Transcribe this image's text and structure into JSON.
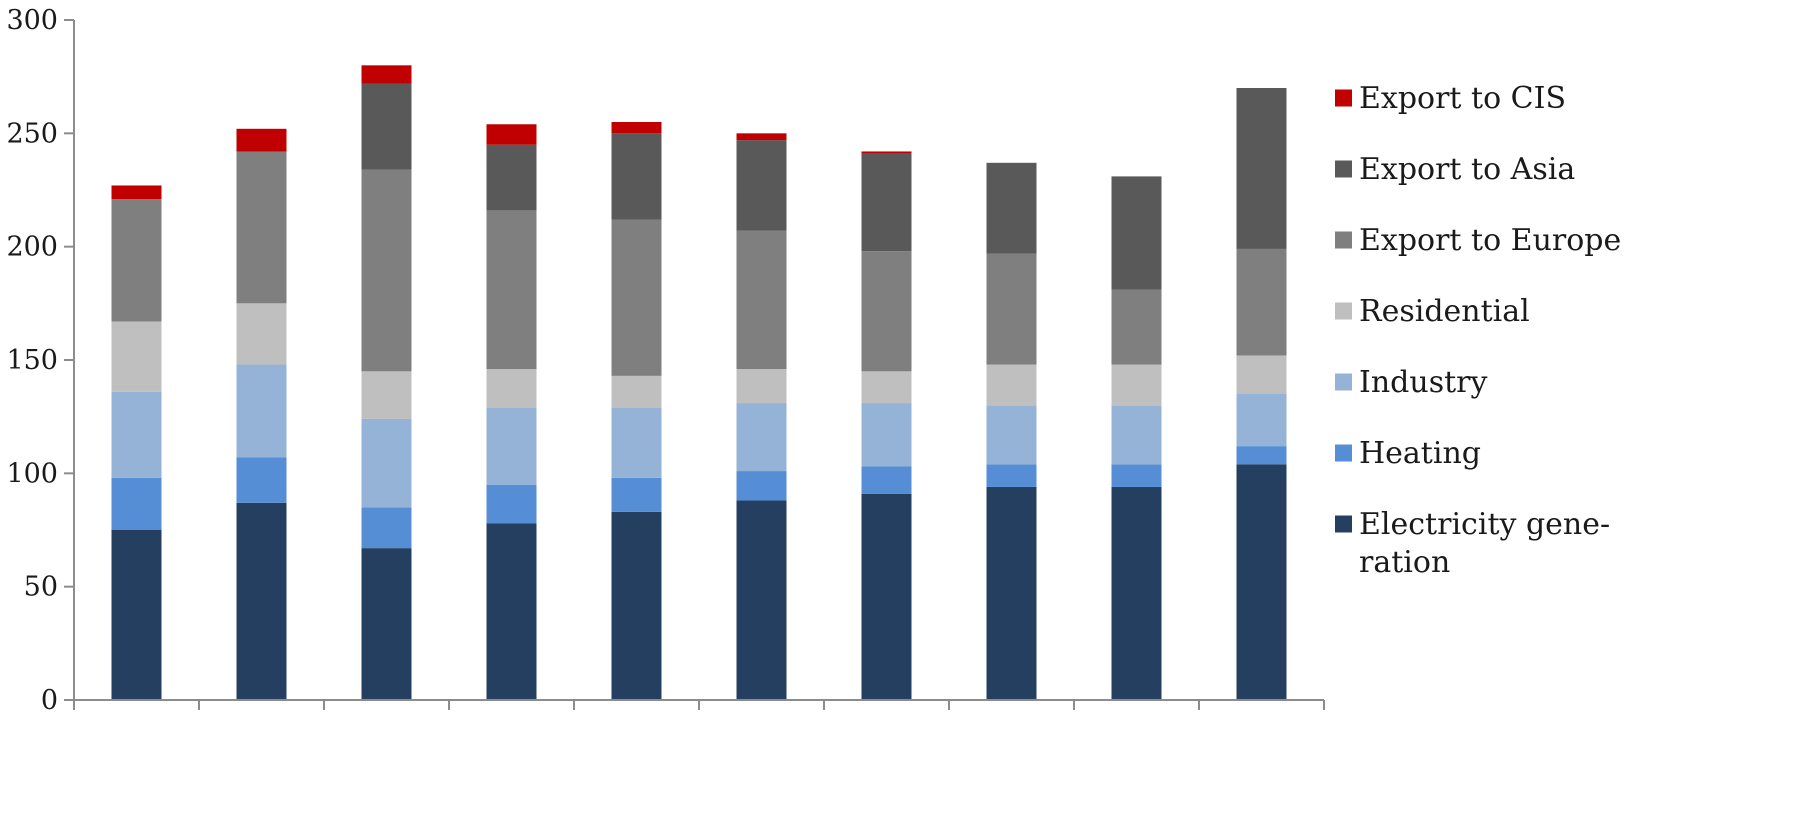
{
  "chart_data": {
    "type": "bar",
    "stacked": true,
    "categories": [
      "",
      "",
      "",
      "",
      "",
      "",
      "",
      "",
      "",
      ""
    ],
    "ylim": [
      0,
      300
    ],
    "yticks": [
      0,
      50,
      100,
      150,
      200,
      250,
      300
    ],
    "ytick_labels": [
      "0",
      "50",
      "100",
      "150",
      "200",
      "250",
      "300"
    ],
    "grid": false,
    "legend_position": "right",
    "series": [
      {
        "name": "Electricity generation",
        "color": "#243f60",
        "values": [
          75,
          87,
          67,
          78,
          83,
          88,
          91,
          94,
          94,
          104
        ]
      },
      {
        "name": "Heating",
        "color": "#558ed5",
        "values": [
          23,
          20,
          18,
          17,
          15,
          13,
          12,
          10,
          10,
          8
        ]
      },
      {
        "name": "Industry",
        "color": "#95b3d7",
        "values": [
          38,
          41,
          39,
          34,
          31,
          30,
          28,
          26,
          26,
          23
        ]
      },
      {
        "name": "Residential",
        "color": "#bfbfbf",
        "values": [
          31,
          27,
          21,
          17,
          14,
          15,
          14,
          18,
          18,
          17
        ]
      },
      {
        "name": "Export to Europe",
        "color": "#7f7f7f",
        "values": [
          54,
          67,
          89,
          70,
          69,
          61,
          53,
          49,
          33,
          47
        ]
      },
      {
        "name": "Export to Asia",
        "color": "#595959",
        "values": [
          0,
          0,
          38,
          29,
          38,
          40,
          43,
          40,
          50,
          71
        ]
      },
      {
        "name": "Export to CIS",
        "color": "#c00000",
        "values": [
          6,
          10,
          8,
          9,
          5,
          3,
          1,
          0,
          0,
          0
        ]
      }
    ],
    "legend_lines": {
      "Electricity generation": [
        "Electricity gene-",
        "ration"
      ]
    }
  }
}
